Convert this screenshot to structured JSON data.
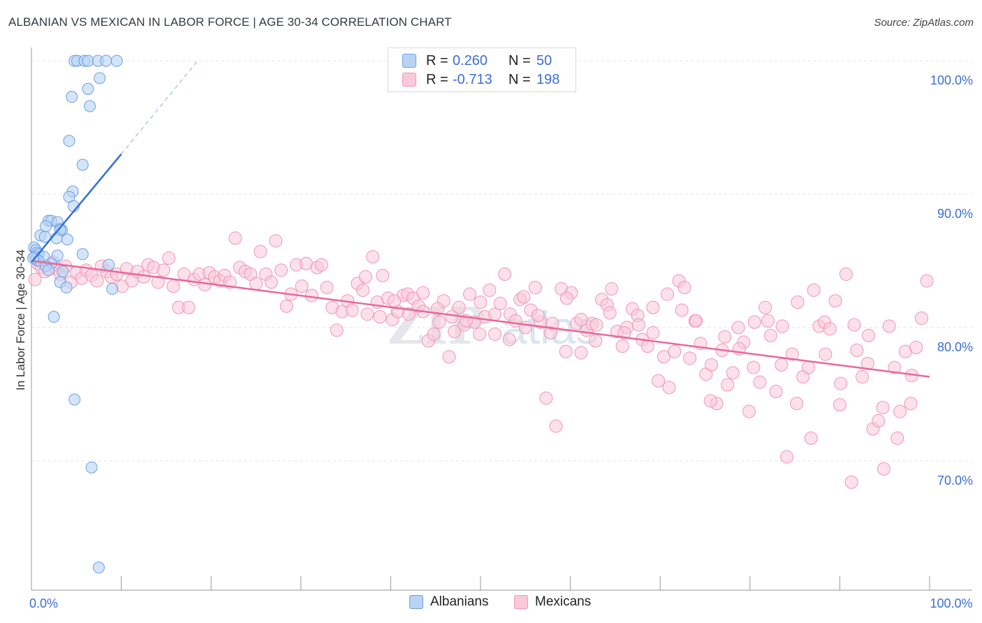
{
  "header": {
    "title": "ALBANIAN VS MEXICAN IN LABOR FORCE | AGE 30-34 CORRELATION CHART",
    "source": "Source: ZipAtlas.com"
  },
  "legend_top": {
    "rows": [
      {
        "r_label": "R =",
        "r_value": "0.260",
        "n_label": "N =",
        "n_value": "50"
      },
      {
        "r_label": "R =",
        "r_value": "-0.713",
        "n_label": "N =",
        "n_value": "198"
      }
    ]
  },
  "legend_bottom": {
    "items": [
      {
        "label": "Albanians"
      },
      {
        "label": "Mexicans"
      }
    ]
  },
  "watermark": {
    "zip": "ZIP",
    "atlas": "atlas"
  },
  "colors": {
    "albanian_fill": "#b9d3f5",
    "albanian_stroke": "#6b9fe0",
    "albanian_line": "#2e6fd8",
    "mexican_fill": "#f9c9d9",
    "mexican_stroke": "#ee96b4",
    "mexican_line": "#e8689a",
    "tick_label": "#3b6fd4",
    "grid": "#e3e3e3"
  },
  "chart_data": {
    "type": "scatter",
    "title": "ALBANIAN VS MEXICAN IN LABOR FORCE | AGE 30-34 CORRELATION CHART",
    "xlabel": "",
    "ylabel": "In Labor Force | Age 30-34",
    "xlim": [
      0,
      100
    ],
    "ylim": [
      60.3,
      101.0
    ],
    "y_ticks": [
      {
        "value": 70,
        "label": "70.0%"
      },
      {
        "value": 80,
        "label": "80.0%"
      },
      {
        "value": 90,
        "label": "90.0%"
      },
      {
        "value": 100,
        "label": "100.0%"
      }
    ],
    "x_ticks": [
      0,
      10,
      20,
      30,
      40,
      50,
      60,
      70,
      80,
      90,
      100
    ],
    "x_tick_labels": [
      {
        "value": 0,
        "label": "0.0%"
      },
      {
        "value": 100,
        "label": "100.0%"
      }
    ],
    "series": [
      {
        "name": "Albanians",
        "r": 0.26,
        "n": 50,
        "trend": {
          "x1": 0.0,
          "y1": 84.9,
          "x2": 10.0,
          "y2": 93.0,
          "dash_to_x": 18.5,
          "dash_to_y": 100.0
        },
        "points": [
          [
            4.8,
            100.0
          ],
          [
            5.1,
            100.0
          ],
          [
            5.9,
            100.0
          ],
          [
            6.3,
            100.0
          ],
          [
            7.4,
            100.0
          ],
          [
            8.3,
            100.0
          ],
          [
            9.5,
            100.0
          ],
          [
            7.6,
            98.7
          ],
          [
            6.3,
            97.9
          ],
          [
            4.5,
            97.3
          ],
          [
            6.5,
            96.6
          ],
          [
            4.2,
            94.0
          ],
          [
            5.7,
            92.2
          ],
          [
            4.6,
            90.2
          ],
          [
            4.2,
            89.8
          ],
          [
            4.7,
            89.1
          ],
          [
            1.9,
            88.0
          ],
          [
            2.2,
            88.0
          ],
          [
            2.9,
            87.9
          ],
          [
            1.6,
            87.6
          ],
          [
            3.2,
            87.4
          ],
          [
            3.4,
            87.3
          ],
          [
            3.2,
            87.3
          ],
          [
            1.0,
            86.9
          ],
          [
            1.5,
            86.8
          ],
          [
            2.8,
            86.7
          ],
          [
            4.0,
            86.6
          ],
          [
            0.3,
            86.0
          ],
          [
            0.5,
            85.8
          ],
          [
            0.6,
            85.6
          ],
          [
            0.8,
            85.5
          ],
          [
            2.9,
            85.4
          ],
          [
            5.7,
            85.5
          ],
          [
            0.4,
            85.3
          ],
          [
            1.4,
            85.3
          ],
          [
            0.5,
            85.1
          ],
          [
            0.8,
            85.0
          ],
          [
            2.2,
            84.8
          ],
          [
            8.6,
            84.7
          ],
          [
            1.6,
            84.6
          ],
          [
            1.9,
            84.3
          ],
          [
            3.5,
            84.2
          ],
          [
            3.2,
            83.4
          ],
          [
            3.9,
            83.0
          ],
          [
            9.0,
            82.9
          ],
          [
            2.5,
            80.8
          ],
          [
            4.8,
            74.6
          ],
          [
            6.7,
            69.5
          ],
          [
            7.5,
            62.0
          ],
          [
            0.2,
            85.2
          ]
        ]
      },
      {
        "name": "Mexicans",
        "r": -0.713,
        "n": 198,
        "trend": {
          "x1": 0.0,
          "y1": 85.0,
          "x2": 100.0,
          "y2": 76.3
        },
        "points": [
          [
            0.4,
            83.6
          ],
          [
            0.7,
            84.8
          ],
          [
            1.1,
            84.5
          ],
          [
            1.5,
            84.2
          ],
          [
            2.4,
            84.9
          ],
          [
            2.8,
            84.4
          ],
          [
            3.2,
            84.0
          ],
          [
            3.8,
            84.6
          ],
          [
            4.4,
            83.4
          ],
          [
            5.0,
            84.1
          ],
          [
            5.6,
            83.7
          ],
          [
            6.1,
            84.3
          ],
          [
            6.7,
            83.9
          ],
          [
            7.3,
            83.5
          ],
          [
            7.8,
            84.6
          ],
          [
            8.4,
            84.2
          ],
          [
            8.9,
            83.8
          ],
          [
            9.5,
            84.0
          ],
          [
            10.1,
            83.1
          ],
          [
            10.6,
            84.4
          ],
          [
            11.2,
            83.5
          ],
          [
            11.8,
            84.2
          ],
          [
            12.5,
            83.8
          ],
          [
            13.0,
            84.7
          ],
          [
            13.6,
            84.5
          ],
          [
            14.1,
            83.4
          ],
          [
            14.7,
            84.3
          ],
          [
            15.3,
            85.2
          ],
          [
            15.8,
            83.1
          ],
          [
            16.4,
            81.5
          ],
          [
            17.0,
            84.0
          ],
          [
            17.5,
            81.5
          ],
          [
            18.1,
            83.6
          ],
          [
            18.7,
            84.0
          ],
          [
            19.3,
            83.2
          ],
          [
            19.8,
            84.1
          ],
          [
            20.4,
            83.8
          ],
          [
            21.0,
            83.5
          ],
          [
            21.5,
            83.9
          ],
          [
            22.1,
            83.4
          ],
          [
            22.7,
            86.7
          ],
          [
            23.2,
            84.5
          ],
          [
            23.8,
            84.2
          ],
          [
            24.4,
            84.0
          ],
          [
            25.0,
            83.3
          ],
          [
            25.5,
            85.7
          ],
          [
            26.1,
            84.0
          ],
          [
            26.7,
            83.4
          ],
          [
            27.2,
            86.5
          ],
          [
            27.8,
            84.3
          ],
          [
            28.4,
            81.6
          ],
          [
            28.9,
            82.5
          ],
          [
            29.5,
            84.7
          ],
          [
            30.1,
            83.1
          ],
          [
            30.6,
            84.8
          ],
          [
            31.2,
            82.4
          ],
          [
            31.8,
            84.5
          ],
          [
            32.3,
            84.7
          ],
          [
            32.9,
            83.0
          ],
          [
            33.5,
            81.5
          ],
          [
            34.0,
            79.8
          ],
          [
            34.6,
            81.2
          ],
          [
            35.2,
            82.0
          ],
          [
            35.7,
            81.3
          ],
          [
            36.3,
            83.3
          ],
          [
            36.9,
            82.8
          ],
          [
            37.4,
            81.0
          ],
          [
            38.0,
            85.3
          ],
          [
            38.5,
            81.9
          ],
          [
            39.1,
            83.9
          ],
          [
            39.7,
            82.2
          ],
          [
            40.2,
            80.6
          ],
          [
            40.8,
            81.2
          ],
          [
            41.4,
            82.4
          ],
          [
            41.9,
            82.5
          ],
          [
            42.5,
            82.2
          ],
          [
            43.1,
            81.6
          ],
          [
            43.6,
            81.2
          ],
          [
            44.2,
            79.0
          ],
          [
            44.8,
            79.5
          ],
          [
            45.4,
            80.4
          ],
          [
            45.9,
            82.0
          ],
          [
            46.5,
            77.8
          ],
          [
            47.1,
            79.7
          ],
          [
            47.6,
            81.5
          ],
          [
            48.2,
            80.2
          ],
          [
            48.8,
            82.5
          ],
          [
            49.3,
            80.4
          ],
          [
            49.9,
            79.5
          ],
          [
            50.5,
            80.8
          ],
          [
            51.0,
            82.8
          ],
          [
            51.6,
            81.0
          ],
          [
            52.2,
            81.8
          ],
          [
            52.7,
            84.0
          ],
          [
            53.3,
            81.0
          ],
          [
            53.9,
            80.5
          ],
          [
            54.4,
            82.1
          ],
          [
            55.0,
            80.0
          ],
          [
            55.6,
            81.3
          ],
          [
            56.1,
            83.0
          ],
          [
            56.7,
            80.4
          ],
          [
            57.3,
            74.7
          ],
          [
            57.8,
            79.6
          ],
          [
            58.4,
            72.6
          ],
          [
            59.0,
            82.9
          ],
          [
            59.5,
            78.2
          ],
          [
            60.1,
            82.6
          ],
          [
            60.7,
            80.3
          ],
          [
            61.2,
            78.1
          ],
          [
            61.8,
            79.8
          ],
          [
            62.4,
            80.3
          ],
          [
            62.9,
            80.2
          ],
          [
            63.5,
            82.1
          ],
          [
            64.1,
            81.7
          ],
          [
            64.6,
            82.9
          ],
          [
            65.2,
            79.7
          ],
          [
            65.8,
            78.6
          ],
          [
            66.3,
            80.0
          ],
          [
            66.9,
            81.4
          ],
          [
            67.5,
            80.9
          ],
          [
            68.0,
            79.1
          ],
          [
            68.6,
            78.6
          ],
          [
            69.2,
            79.6
          ],
          [
            69.8,
            76.0
          ],
          [
            70.4,
            77.8
          ],
          [
            71.0,
            75.5
          ],
          [
            71.6,
            78.2
          ],
          [
            72.1,
            83.5
          ],
          [
            72.7,
            83.0
          ],
          [
            73.3,
            77.7
          ],
          [
            73.9,
            80.5
          ],
          [
            74.5,
            78.8
          ],
          [
            75.1,
            76.5
          ],
          [
            75.7,
            77.2
          ],
          [
            76.3,
            74.3
          ],
          [
            76.9,
            78.3
          ],
          [
            77.5,
            75.7
          ],
          [
            78.1,
            76.6
          ],
          [
            78.7,
            80.0
          ],
          [
            79.3,
            78.9
          ],
          [
            79.9,
            73.7
          ],
          [
            80.5,
            80.4
          ],
          [
            81.1,
            75.9
          ],
          [
            81.7,
            81.5
          ],
          [
            82.3,
            79.4
          ],
          [
            82.9,
            75.2
          ],
          [
            83.5,
            77.2
          ],
          [
            84.1,
            70.3
          ],
          [
            84.7,
            78.0
          ],
          [
            85.3,
            81.9
          ],
          [
            85.9,
            76.3
          ],
          [
            86.5,
            77.0
          ],
          [
            87.1,
            82.8
          ],
          [
            87.7,
            80.1
          ],
          [
            88.3,
            80.4
          ],
          [
            88.9,
            79.9
          ],
          [
            89.5,
            82.0
          ],
          [
            90.1,
            75.8
          ],
          [
            90.7,
            84.0
          ],
          [
            91.3,
            68.4
          ],
          [
            91.9,
            78.3
          ],
          [
            92.5,
            76.3
          ],
          [
            93.1,
            77.3
          ],
          [
            93.7,
            72.4
          ],
          [
            94.3,
            73.0
          ],
          [
            94.9,
            69.4
          ],
          [
            95.5,
            80.1
          ],
          [
            96.1,
            77.0
          ],
          [
            96.7,
            73.7
          ],
          [
            97.3,
            78.2
          ],
          [
            97.9,
            74.3
          ],
          [
            98.5,
            78.5
          ],
          [
            99.1,
            80.7
          ],
          [
            99.7,
            83.5
          ],
          [
            98.0,
            76.4
          ],
          [
            96.4,
            71.7
          ],
          [
            94.8,
            74.0
          ],
          [
            93.2,
            79.4
          ],
          [
            91.6,
            80.2
          ],
          [
            90.0,
            74.2
          ],
          [
            88.4,
            78.0
          ],
          [
            86.8,
            71.7
          ],
          [
            85.2,
            74.3
          ],
          [
            83.6,
            80.1
          ],
          [
            82.0,
            80.5
          ],
          [
            80.4,
            77.0
          ],
          [
            78.8,
            78.4
          ],
          [
            77.2,
            79.3
          ],
          [
            75.6,
            74.5
          ],
          [
            74.0,
            80.5
          ],
          [
            72.4,
            81.3
          ],
          [
            70.8,
            82.5
          ],
          [
            69.2,
            81.5
          ],
          [
            67.6,
            80.2
          ],
          [
            66.0,
            79.6
          ],
          [
            64.4,
            81.1
          ],
          [
            62.8,
            79.0
          ],
          [
            61.2,
            80.6
          ],
          [
            59.6,
            82.2
          ],
          [
            58.0,
            80.3
          ],
          [
            56.4,
            80.9
          ],
          [
            54.8,
            82.3
          ],
          [
            53.2,
            79.1
          ],
          [
            51.6,
            79.5
          ],
          [
            50.0,
            81.9
          ],
          [
            48.4,
            80.5
          ],
          [
            46.8,
            80.8
          ],
          [
            45.2,
            81.4
          ],
          [
            43.6,
            82.6
          ],
          [
            42.0,
            81.0
          ],
          [
            40.4,
            82.0
          ],
          [
            38.8,
            80.8
          ],
          [
            37.2,
            83.8
          ]
        ]
      }
    ]
  }
}
